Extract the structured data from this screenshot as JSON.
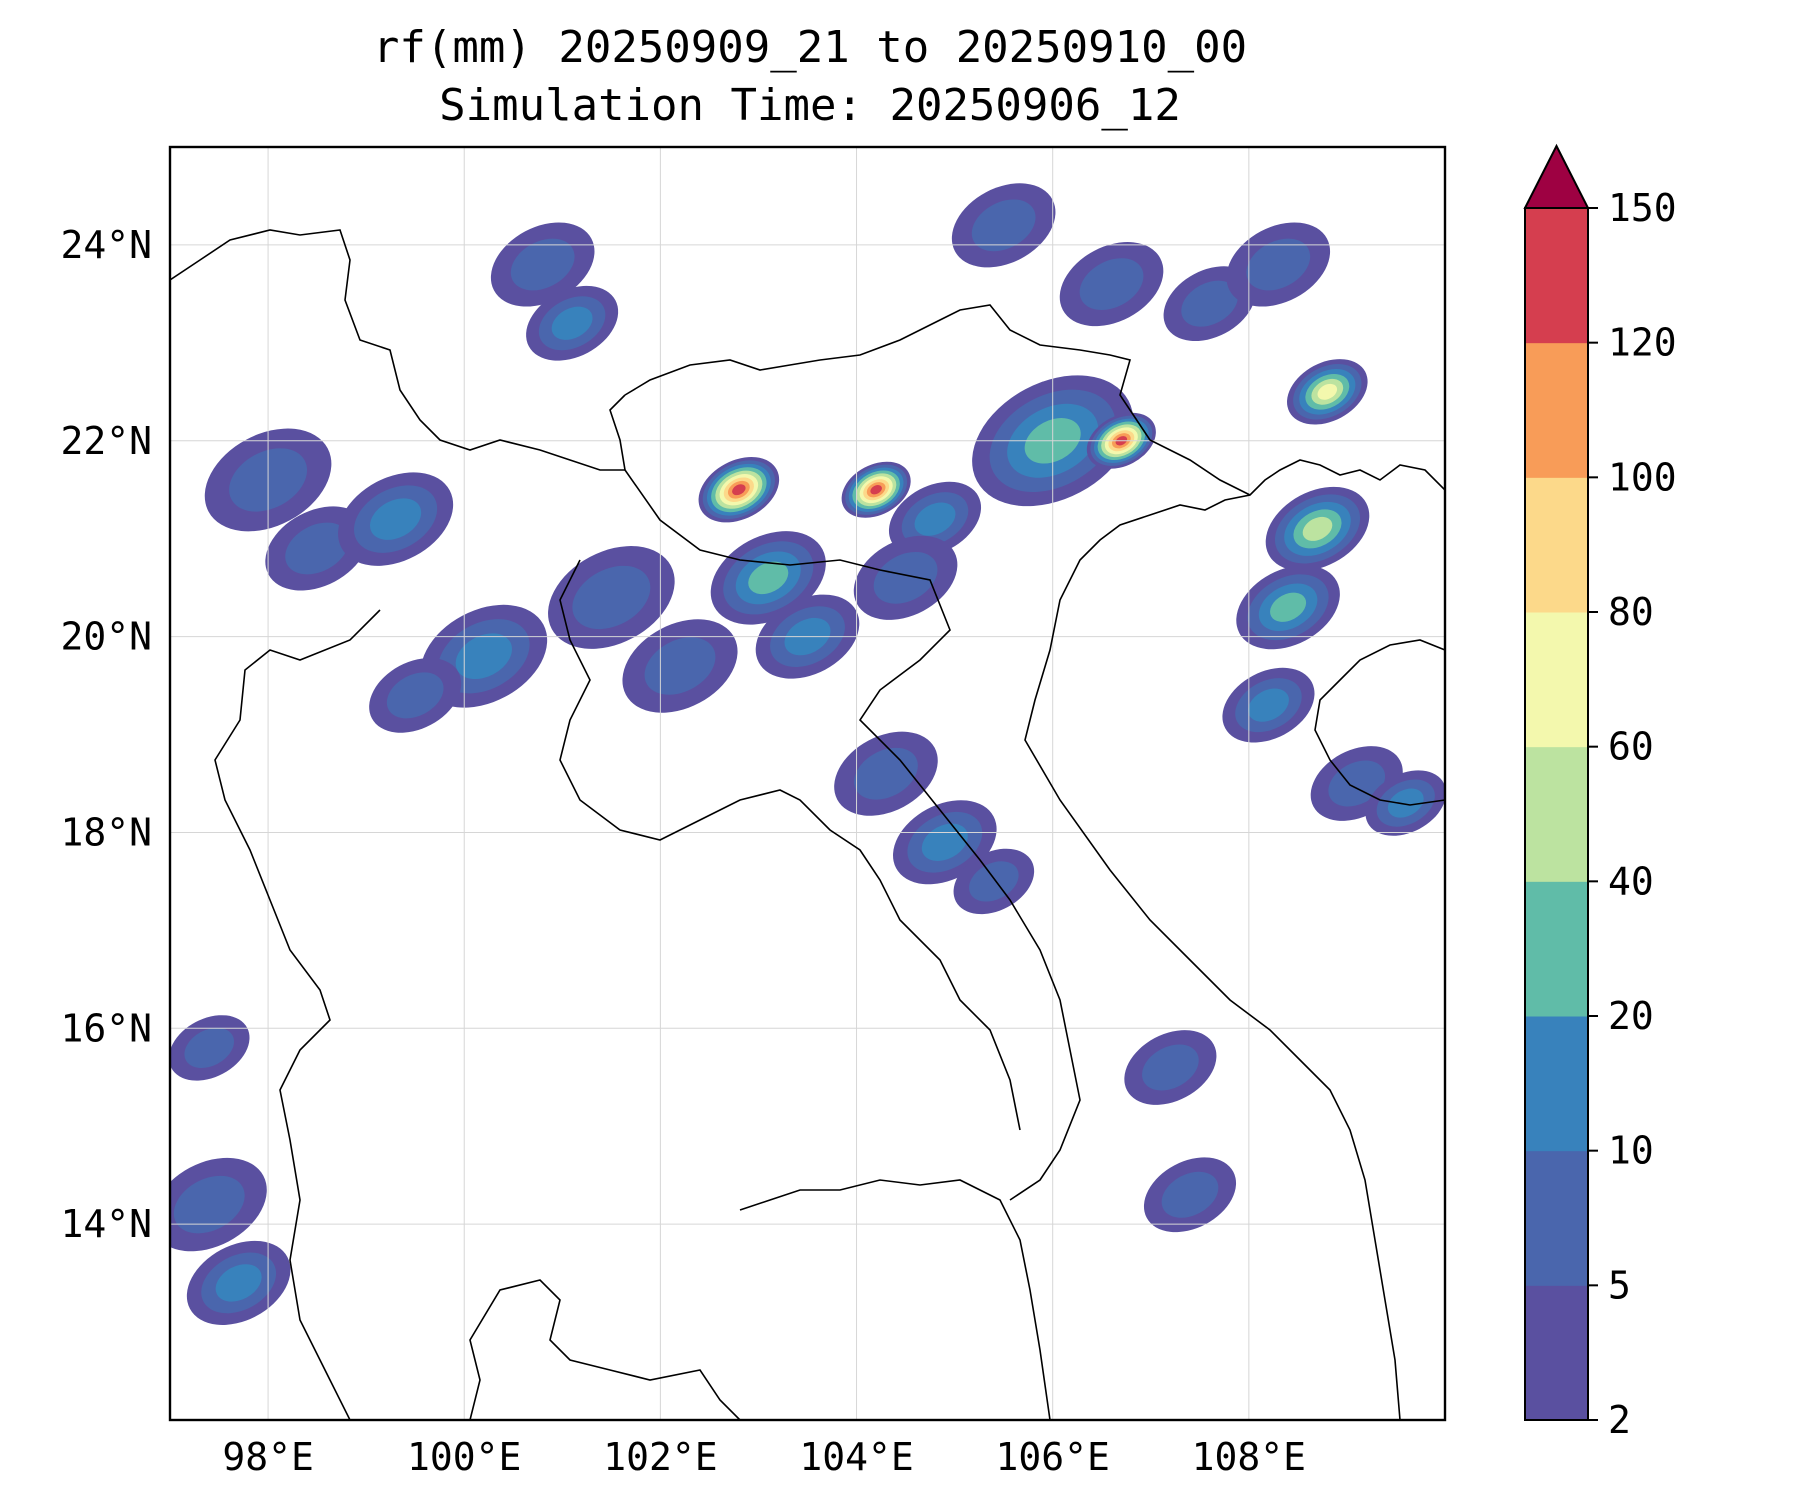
{
  "title": {
    "line1": "rf(mm) 20250909_21 to 20250910_00",
    "line2": "Simulation Time: 20250906_12"
  },
  "map": {
    "lon_range": [
      97.0,
      110.0
    ],
    "lat_range": [
      12.0,
      25.0
    ],
    "lon_ticks": [
      98,
      100,
      102,
      104,
      106,
      108
    ],
    "lat_ticks": [
      14,
      16,
      18,
      20,
      22,
      24
    ],
    "lon_tick_labels": [
      "98°E",
      "100°E",
      "102°E",
      "104°E",
      "106°E",
      "108°E"
    ],
    "lat_tick_labels": [
      "14°N",
      "16°N",
      "18°N",
      "20°N",
      "22°N",
      "24°N"
    ],
    "grid": true
  },
  "colorbar": {
    "levels": [
      2,
      5,
      10,
      20,
      40,
      60,
      80,
      100,
      120,
      150
    ],
    "level_labels": [
      "2",
      "5",
      "10",
      "20",
      "40",
      "60",
      "80",
      "100",
      "120",
      "150"
    ],
    "colors": [
      "#5a50a0",
      "#4a66ad",
      "#3882bc",
      "#60bca8",
      "#bce3a0",
      "#f3f8ad",
      "#fcd98a",
      "#f89c58",
      "#d53e4f"
    ],
    "extend_color": "#9e0142",
    "extend": "max"
  },
  "rain_cells": [
    {
      "lon": 98.0,
      "lat": 21.6,
      "r": 0.55,
      "v": 8
    },
    {
      "lon": 98.5,
      "lat": 20.9,
      "r": 0.45,
      "v": 5
    },
    {
      "lon": 99.3,
      "lat": 21.2,
      "r": 0.5,
      "v": 12
    },
    {
      "lon": 100.2,
      "lat": 19.8,
      "r": 0.55,
      "v": 10
    },
    {
      "lon": 99.5,
      "lat": 19.4,
      "r": 0.4,
      "v": 6
    },
    {
      "lon": 100.8,
      "lat": 23.8,
      "r": 0.45,
      "v": 9
    },
    {
      "lon": 101.1,
      "lat": 23.2,
      "r": 0.4,
      "v": 11
    },
    {
      "lon": 101.5,
      "lat": 20.4,
      "r": 0.55,
      "v": 9
    },
    {
      "lon": 102.2,
      "lat": 19.7,
      "r": 0.5,
      "v": 8
    },
    {
      "lon": 102.8,
      "lat": 21.5,
      "r": 0.35,
      "v": 140
    },
    {
      "lon": 103.1,
      "lat": 20.6,
      "r": 0.5,
      "v": 22
    },
    {
      "lon": 103.5,
      "lat": 20.0,
      "r": 0.45,
      "v": 12
    },
    {
      "lon": 104.2,
      "lat": 21.5,
      "r": 0.3,
      "v": 150
    },
    {
      "lon": 104.8,
      "lat": 21.2,
      "r": 0.4,
      "v": 15
    },
    {
      "lon": 104.5,
      "lat": 20.6,
      "r": 0.45,
      "v": 8
    },
    {
      "lon": 106.0,
      "lat": 22.0,
      "r": 0.7,
      "v": 28
    },
    {
      "lon": 106.7,
      "lat": 22.0,
      "r": 0.3,
      "v": 125
    },
    {
      "lon": 105.5,
      "lat": 24.2,
      "r": 0.45,
      "v": 6
    },
    {
      "lon": 106.6,
      "lat": 23.6,
      "r": 0.45,
      "v": 7
    },
    {
      "lon": 107.6,
      "lat": 23.4,
      "r": 0.4,
      "v": 5
    },
    {
      "lon": 108.3,
      "lat": 23.8,
      "r": 0.45,
      "v": 9
    },
    {
      "lon": 108.8,
      "lat": 22.5,
      "r": 0.35,
      "v": 75
    },
    {
      "lon": 108.7,
      "lat": 21.1,
      "r": 0.45,
      "v": 42
    },
    {
      "lon": 108.4,
      "lat": 20.3,
      "r": 0.45,
      "v": 22
    },
    {
      "lon": 108.2,
      "lat": 19.3,
      "r": 0.4,
      "v": 12
    },
    {
      "lon": 109.1,
      "lat": 18.5,
      "r": 0.4,
      "v": 9
    },
    {
      "lon": 109.6,
      "lat": 18.3,
      "r": 0.35,
      "v": 14
    },
    {
      "lon": 104.3,
      "lat": 18.6,
      "r": 0.45,
      "v": 9
    },
    {
      "lon": 104.9,
      "lat": 17.9,
      "r": 0.45,
      "v": 13
    },
    {
      "lon": 105.4,
      "lat": 17.5,
      "r": 0.35,
      "v": 8
    },
    {
      "lon": 107.2,
      "lat": 15.6,
      "r": 0.4,
      "v": 7
    },
    {
      "lon": 107.4,
      "lat": 14.3,
      "r": 0.4,
      "v": 8
    },
    {
      "lon": 97.4,
      "lat": 14.2,
      "r": 0.5,
      "v": 8
    },
    {
      "lon": 97.7,
      "lat": 13.4,
      "r": 0.45,
      "v": 13
    },
    {
      "lon": 97.4,
      "lat": 15.8,
      "r": 0.35,
      "v": 6
    }
  ]
}
